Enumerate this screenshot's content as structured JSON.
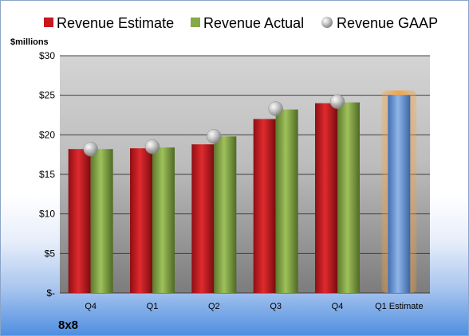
{
  "chart_data": {
    "type": "bar",
    "categories": [
      "Q4",
      "Q1",
      "Q2",
      "Q3",
      "Q4",
      "Q1 Estimate"
    ],
    "series": [
      {
        "name": "Revenue Estimate",
        "values": [
          18.2,
          18.3,
          18.8,
          22.0,
          24.0,
          null
        ]
      },
      {
        "name": "Revenue Actual",
        "values": [
          18.2,
          18.4,
          19.8,
          23.2,
          24.1,
          null
        ]
      },
      {
        "name": "Revenue GAAP",
        "values": [
          18.2,
          18.5,
          19.8,
          23.3,
          24.2,
          null
        ]
      },
      {
        "name": "",
        "values": [
          null,
          null,
          null,
          null,
          null,
          25.0
        ]
      }
    ],
    "ylabel": "$millions",
    "ylim": [
      0,
      30
    ],
    "yticks": [
      0,
      5,
      10,
      15,
      20,
      25,
      30
    ],
    "ytick_labels": [
      "$-",
      "$5",
      "$10",
      "$15",
      "$20",
      "$25",
      "$30"
    ],
    "company": "8x8",
    "grid": true,
    "legend_position": "top",
    "colors": {
      "estimate": "#c8171d",
      "actual": "#86a94a",
      "gaap": "#b4b4b4",
      "future_estimate": "#6f9ad6",
      "highlight": "#f6a13a"
    }
  }
}
